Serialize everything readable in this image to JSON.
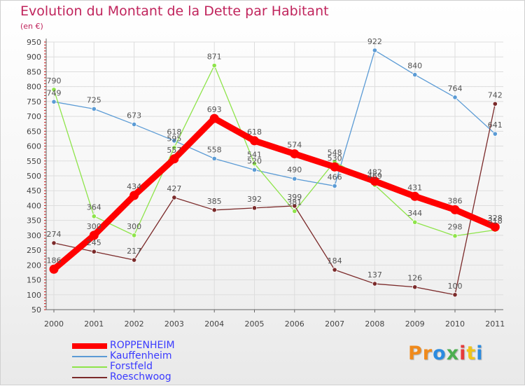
{
  "header": {
    "title": "Evolution du Montant de la Dette par Habitant",
    "unit": "(en €)"
  },
  "chart_data": {
    "type": "line",
    "title": "Evolution du Montant de la Dette par Habitant",
    "subtitle": "(en €)",
    "xlabel": "",
    "ylabel": "",
    "categories": [
      "2000",
      "2001",
      "2002",
      "2003",
      "2004",
      "2005",
      "2006",
      "2007",
      "2008",
      "2009",
      "2010",
      "2011"
    ],
    "ylim": [
      50,
      950
    ],
    "yticks": [
      50,
      100,
      150,
      200,
      250,
      300,
      350,
      400,
      450,
      500,
      550,
      600,
      650,
      700,
      750,
      800,
      850,
      900,
      950
    ],
    "grid": true,
    "legend_position": "bottom-left",
    "series": [
      {
        "name": "ROPPENHEIM",
        "color": "#ff0000",
        "values": [
          186,
          300,
          434,
          557,
          693,
          618,
          574,
          530,
          482,
          431,
          386,
          328
        ]
      },
      {
        "name": "Kauffenheim",
        "color": "#5b9bd5",
        "values": [
          749,
          725,
          673,
          618,
          558,
          520,
          490,
          466,
          922,
          840,
          764,
          641
        ]
      },
      {
        "name": "Forstfeld",
        "color": "#8ee44a",
        "values": [
          790,
          364,
          300,
          595,
          871,
          541,
          381,
          548,
          469,
          344,
          298,
          318
        ]
      },
      {
        "name": "Roeschwoog",
        "color": "#7b2a2a",
        "values": [
          274,
          245,
          217,
          427,
          385,
          392,
          399,
          184,
          137,
          126,
          100,
          742
        ]
      }
    ]
  },
  "brand": {
    "name": "Proxiti",
    "letters": [
      "P",
      "r",
      "o",
      "x",
      "i",
      "t",
      "i"
    ],
    "colors": [
      "#f08a1c",
      "#f08a1c",
      "#2b8be0",
      "#4caf50",
      "#e63b3b",
      "#f0c419",
      "#2b8be0"
    ]
  }
}
